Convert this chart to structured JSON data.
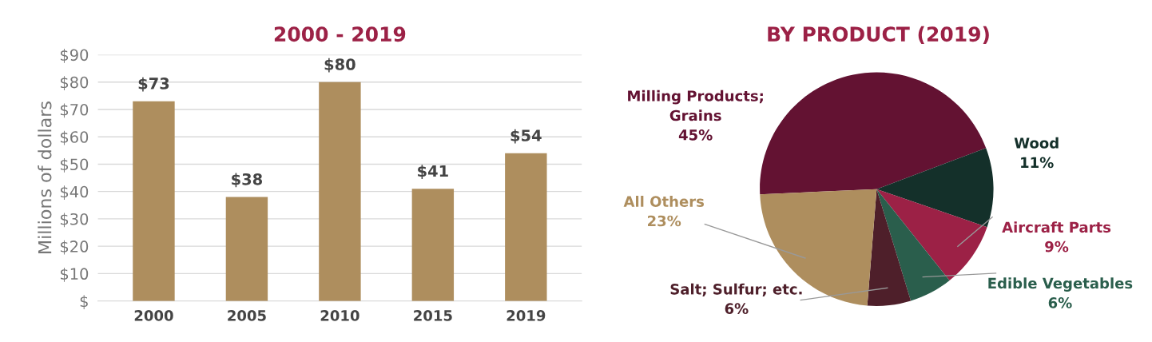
{
  "chart_data": [
    {
      "type": "bar",
      "title": "2000 - 2019",
      "ylabel": "Millions of dollars",
      "categories": [
        "2000",
        "2005",
        "2010",
        "2015",
        "2019"
      ],
      "values": [
        73,
        38,
        80,
        41,
        54
      ],
      "color": "#ae8e5e",
      "value_labels": [
        "$73",
        "$38",
        "$80",
        "$41",
        "$54"
      ],
      "ylim": [
        0,
        90
      ],
      "yticks": [
        {
          "value": 0,
          "label": "$"
        },
        {
          "value": 10,
          "label": "$10"
        },
        {
          "value": 20,
          "label": "$20"
        },
        {
          "value": 30,
          "label": "$30"
        },
        {
          "value": 40,
          "label": "$40"
        },
        {
          "value": 50,
          "label": "$50"
        },
        {
          "value": 60,
          "label": "$60"
        },
        {
          "value": 70,
          "label": "$70"
        },
        {
          "value": 80,
          "label": "$80"
        },
        {
          "value": 90,
          "label": "$90"
        }
      ],
      "grid": "y"
    },
    {
      "type": "pie",
      "title": "BY PRODUCT (2019)",
      "categories": [
        "Milling Products;\nGrains",
        "Wood",
        "Aircraft Parts",
        "Edible Vegetables",
        "Salt; Sulfur; etc.",
        "All Others"
      ],
      "values": [
        45,
        11,
        9,
        6,
        6,
        23
      ],
      "colors": [
        "#631232",
        "#14302a",
        "#9c2146",
        "#2a5e4c",
        "#4e1f2a",
        "#ae8e5e"
      ],
      "value_labels": [
        "45%",
        "11%",
        "9%",
        "6%",
        "6%",
        "23%"
      ]
    }
  ]
}
